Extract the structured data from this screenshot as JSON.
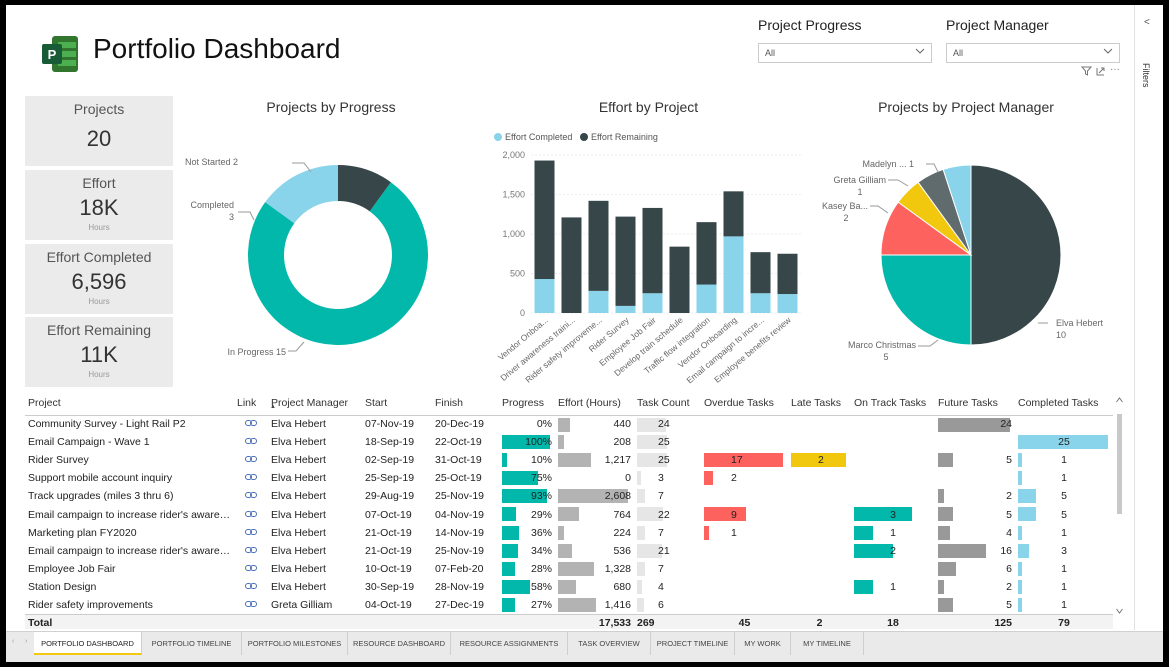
{
  "title": "Portfolio Dashboard",
  "slicers": [
    {
      "label": "Project Progress",
      "value": "All"
    },
    {
      "label": "Project Manager",
      "value": "All"
    }
  ],
  "filters_label": "Filters",
  "kpis": [
    {
      "title": "Projects",
      "value": "20",
      "unit": ""
    },
    {
      "title": "Effort",
      "value": "18K",
      "unit": "Hours"
    },
    {
      "title": "Effort Completed",
      "value": "6,596",
      "unit": "Hours"
    },
    {
      "title": "Effort Remaining",
      "value": "11K",
      "unit": "Hours"
    }
  ],
  "chart_data": [
    {
      "type": "pie",
      "subtype": "donut",
      "title": "Projects by Progress",
      "slices": [
        {
          "name": "Not Started",
          "value": 2,
          "color": "#374649"
        },
        {
          "name": "In Progress",
          "value": 15,
          "color": "#01b8aa"
        },
        {
          "name": "Completed",
          "value": 3,
          "color": "#8ad4eb"
        }
      ]
    },
    {
      "type": "bar",
      "subtype": "stacked",
      "title": "Effort by Project",
      "legend": [
        "Effort Completed",
        "Effort Remaining"
      ],
      "ylim": [
        0,
        2000
      ],
      "yticks": [
        "0",
        "500",
        "1,000",
        "1,500",
        "2,000"
      ],
      "categories": [
        "Vendor Onboa...",
        "Driver awareness traini...",
        "Rider safety improveme...",
        "Rider Survey",
        "Employee Job Fair",
        "Develop train schedule",
        "Traffic flow integration",
        "Vendor Onboarding",
        "Email campaign to incre...",
        "Employee benefits review"
      ],
      "series": [
        {
          "name": "Effort Completed",
          "color": "#8ad4eb",
          "values": [
            430,
            0,
            280,
            90,
            250,
            0,
            360,
            970,
            250,
            240
          ]
        },
        {
          "name": "Effort Remaining",
          "color": "#374649",
          "values": [
            1500,
            1210,
            1140,
            1130,
            1080,
            840,
            790,
            570,
            520,
            510
          ]
        }
      ]
    },
    {
      "type": "pie",
      "title": "Projects by Project Manager",
      "slices": [
        {
          "name": "Elva Hebert",
          "label": "Elva Hebert",
          "value": 10,
          "color": "#374649"
        },
        {
          "name": "Marco Christmas",
          "label": "Marco Christmas",
          "value": 5,
          "color": "#01b8aa"
        },
        {
          "name": "Kasey Ba...",
          "label": "Kasey Ba...",
          "value": 2,
          "color": "#fd625e"
        },
        {
          "name": "Greta Gilliam",
          "label": "Greta Gilliam",
          "value": 1,
          "color": "#f2c80f"
        },
        {
          "name": "Madelyn ...",
          "label": "Madelyn ...",
          "value": 1,
          "color": "#5f6b6d"
        },
        {
          "name": "Other",
          "label": "",
          "value": 1,
          "color": "#8ad4eb"
        }
      ]
    }
  ],
  "table": {
    "columns": [
      "Project",
      "Link",
      "Project Manager",
      "Start",
      "Finish",
      "Progress",
      "Effort (Hours)",
      "Task Count",
      "Overdue Tasks",
      "Late Tasks",
      "On Track Tasks",
      "Future Tasks",
      "Completed Tasks"
    ],
    "rows": [
      {
        "project": "Community Survey - Light Rail P2",
        "pm": "Elva Hebert",
        "start": "07-Nov-19",
        "finish": "20-Dec-19",
        "progress": "0%",
        "p": 0,
        "effort": "440",
        "e": 440,
        "tasks": "24",
        "t": 24,
        "overdue": "",
        "late": "",
        "ontrack": "",
        "future": "24",
        "completed": ""
      },
      {
        "project": "Email Campaign - Wave 1",
        "pm": "Elva Hebert",
        "start": "18-Sep-19",
        "finish": "22-Oct-19",
        "progress": "100%",
        "p": 100,
        "effort": "208",
        "e": 208,
        "tasks": "25",
        "t": 25,
        "overdue": "",
        "late": "",
        "ontrack": "",
        "future": "",
        "completed": "25"
      },
      {
        "project": "Rider Survey",
        "pm": "Elva Hebert",
        "start": "02-Sep-19",
        "finish": "31-Oct-19",
        "progress": "10%",
        "p": 10,
        "effort": "1,217",
        "e": 1217,
        "tasks": "25",
        "t": 25,
        "overdue": "17",
        "late": "2",
        "ontrack": "",
        "future": "5",
        "completed": "1"
      },
      {
        "project": "Support mobile account inquiry",
        "pm": "Elva Hebert",
        "start": "25-Sep-19",
        "finish": "25-Oct-19",
        "progress": "75%",
        "p": 75,
        "effort": "0",
        "e": 0,
        "tasks": "3",
        "t": 3,
        "overdue": "2",
        "late": "",
        "ontrack": "",
        "future": "",
        "completed": "1"
      },
      {
        "project": "Track upgrades (miles 3 thru 6)",
        "pm": "Elva Hebert",
        "start": "29-Aug-19",
        "finish": "25-Nov-19",
        "progress": "93%",
        "p": 93,
        "effort": "2,608",
        "e": 2608,
        "tasks": "7",
        "t": 7,
        "overdue": "",
        "late": "",
        "ontrack": "",
        "future": "2",
        "completed": "5"
      },
      {
        "project": "Email campaign to increase rider's awaren...",
        "pm": "Elva Hebert",
        "start": "07-Oct-19",
        "finish": "04-Nov-19",
        "progress": "29%",
        "p": 29,
        "effort": "764",
        "e": 764,
        "tasks": "22",
        "t": 22,
        "overdue": "9",
        "late": "",
        "ontrack": "3",
        "future": "5",
        "completed": "5"
      },
      {
        "project": "Marketing plan FY2020",
        "pm": "Elva Hebert",
        "start": "21-Oct-19",
        "finish": "14-Nov-19",
        "progress": "36%",
        "p": 36,
        "effort": "224",
        "e": 224,
        "tasks": "7",
        "t": 7,
        "overdue": "1",
        "late": "",
        "ontrack": "1",
        "future": "4",
        "completed": "1"
      },
      {
        "project": "Email campaign to increase rider's awaren...",
        "pm": "Elva Hebert",
        "start": "21-Oct-19",
        "finish": "25-Nov-19",
        "progress": "34%",
        "p": 34,
        "effort": "536",
        "e": 536,
        "tasks": "21",
        "t": 21,
        "overdue": "",
        "late": "",
        "ontrack": "2",
        "future": "16",
        "completed": "3"
      },
      {
        "project": "Employee Job Fair",
        "pm": "Elva Hebert",
        "start": "10-Oct-19",
        "finish": "07-Feb-20",
        "progress": "28%",
        "p": 28,
        "effort": "1,328",
        "e": 1328,
        "tasks": "7",
        "t": 7,
        "overdue": "",
        "late": "",
        "ontrack": "",
        "future": "6",
        "completed": "1"
      },
      {
        "project": "Station Design",
        "pm": "Elva Hebert",
        "start": "30-Sep-19",
        "finish": "28-Nov-19",
        "progress": "58%",
        "p": 58,
        "effort": "680",
        "e": 680,
        "tasks": "4",
        "t": 4,
        "overdue": "",
        "late": "",
        "ontrack": "1",
        "future": "2",
        "completed": "1"
      },
      {
        "project": "Rider safety improvements",
        "pm": "Greta Gilliam",
        "start": "04-Oct-19",
        "finish": "27-Dec-19",
        "progress": "27%",
        "p": 27,
        "effort": "1,416",
        "e": 1416,
        "tasks": "6",
        "t": 6,
        "overdue": "",
        "late": "",
        "ontrack": "",
        "future": "5",
        "completed": "1"
      }
    ],
    "total": {
      "label": "Total",
      "effort": "17,533",
      "tasks": "269",
      "overdue": "45",
      "late": "2",
      "ontrack": "18",
      "future": "125",
      "completed": "79"
    }
  },
  "tabs": [
    "PORTFOLIO DASHBOARD",
    "PORTFOLIO TIMELINE",
    "PORTFOLIO MILESTONES",
    "RESOURCE DASHBOARD",
    "RESOURCE ASSIGNMENTS",
    "TASK OVERVIEW",
    "PROJECT TIMELINE",
    "MY WORK",
    "MY TIMELINE"
  ]
}
